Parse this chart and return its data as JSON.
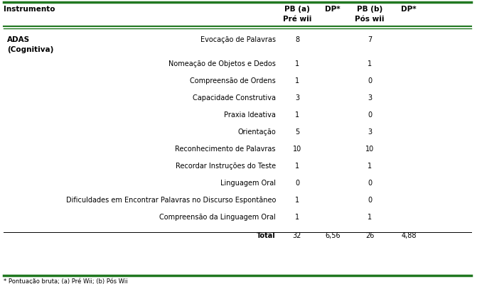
{
  "header_col1": "Instrumento",
  "header_pb_a": "PB (a)",
  "header_dp1": "DP*",
  "header_pb_b": "PB (b)",
  "header_dp2": "DP*",
  "header_pre": "Pré wii",
  "header_pos": "Pós wii",
  "adas_line1": "ADAS",
  "adas_line2": "(Cognitiva)",
  "rows": [
    [
      "Evocação de Palavras",
      "8",
      "",
      "7",
      ""
    ],
    [
      "",
      "",
      "",
      "",
      ""
    ],
    [
      "Nomeação de Objetos e Dedos",
      "1",
      "",
      "1",
      ""
    ],
    [
      "Compreensão de Ordens",
      "1",
      "",
      "0",
      ""
    ],
    [
      "Capacidade Construtiva",
      "3",
      "",
      "3",
      ""
    ],
    [
      "Praxia Ideativa",
      "1",
      "",
      "0",
      ""
    ],
    [
      "Orientação",
      "5",
      "",
      "3",
      ""
    ],
    [
      "Reconhecimento de Palavras",
      "10",
      "",
      "10",
      ""
    ],
    [
      "Recordar Instruções do Teste",
      "1",
      "",
      "1",
      ""
    ],
    [
      "Linguagem Oral",
      "0",
      "",
      "0",
      ""
    ],
    [
      "Dificuldades em Encontrar Palavras no Discurso Espontâneo",
      "1",
      "",
      "0",
      ""
    ],
    [
      "Compreensão da Linguagem Oral",
      "1",
      "",
      "1",
      ""
    ]
  ],
  "total_row": [
    "Total",
    "32",
    "6,56",
    "26",
    "4,88"
  ],
  "footnote": "* Pontuação bruta; (a) Pré Wii; (b) Pós Wii",
  "green_color": "#217821",
  "black_color": "#000000"
}
